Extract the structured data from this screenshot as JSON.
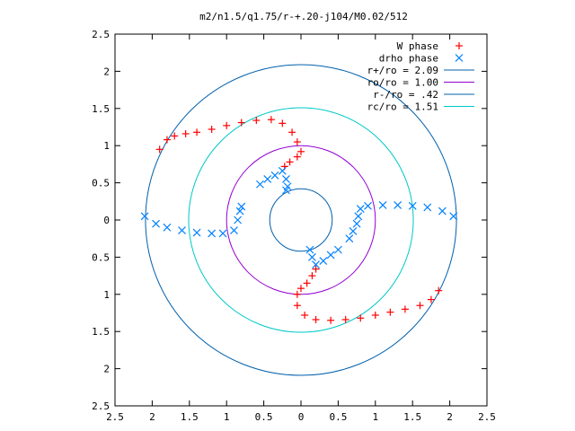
{
  "chart_data": {
    "type": "scatter",
    "title": "m2/n1.5/q1.75/r-+.20-j104/M0.02/512",
    "xlim": [
      -2.5,
      2.5
    ],
    "ylim": [
      -2.5,
      2.5
    ],
    "x_ticks": [
      -2.5,
      -2,
      -1.5,
      -1,
      -0.5,
      0,
      0.5,
      1,
      1.5,
      2,
      2.5
    ],
    "y_ticks": [
      -2.5,
      -2,
      -1.5,
      -1,
      -0.5,
      0,
      0.5,
      1,
      1.5,
      2,
      2.5
    ],
    "x_tick_labels": [
      "2.5",
      "2",
      "1.5",
      "1",
      "0.5",
      "0",
      "0.5",
      "1",
      "1.5",
      "2",
      "2.5"
    ],
    "y_tick_labels": [
      "2.5",
      "2",
      "1.5",
      "1",
      "0.5",
      "0",
      "0.5",
      "1",
      "1.5",
      "2",
      "2.5"
    ],
    "grid": false,
    "legend_position": "top-right",
    "series": [
      {
        "name": "W phase",
        "kind": "points",
        "marker": "+",
        "color": "#ff0000",
        "points": [
          [
            -1.9,
            0.95
          ],
          [
            -1.8,
            1.08
          ],
          [
            -1.7,
            1.13
          ],
          [
            -1.55,
            1.16
          ],
          [
            -1.4,
            1.18
          ],
          [
            -1.2,
            1.22
          ],
          [
            -1.0,
            1.27
          ],
          [
            -0.8,
            1.31
          ],
          [
            -0.6,
            1.34
          ],
          [
            -0.4,
            1.35
          ],
          [
            -0.25,
            1.3
          ],
          [
            -0.12,
            1.18
          ],
          [
            -0.05,
            1.05
          ],
          [
            0.0,
            0.92
          ],
          [
            -0.05,
            0.85
          ],
          [
            -0.15,
            0.78
          ],
          [
            -0.22,
            0.72
          ],
          [
            1.85,
            -0.95
          ],
          [
            1.75,
            -1.07
          ],
          [
            1.6,
            -1.15
          ],
          [
            1.4,
            -1.2
          ],
          [
            1.2,
            -1.24
          ],
          [
            1.0,
            -1.28
          ],
          [
            0.8,
            -1.32
          ],
          [
            0.6,
            -1.34
          ],
          [
            0.4,
            -1.35
          ],
          [
            0.2,
            -1.34
          ],
          [
            0.05,
            -1.28
          ],
          [
            -0.05,
            -1.15
          ],
          [
            -0.05,
            -1.0
          ],
          [
            0.0,
            -0.92
          ],
          [
            0.08,
            -0.85
          ],
          [
            0.15,
            -0.75
          ],
          [
            0.2,
            -0.66
          ]
        ]
      },
      {
        "name": "drho phase",
        "kind": "points",
        "marker": "x",
        "color": "#0080ff",
        "points": [
          [
            -2.1,
            0.05
          ],
          [
            -1.95,
            -0.05
          ],
          [
            -1.8,
            -0.1
          ],
          [
            -1.6,
            -0.14
          ],
          [
            -1.4,
            -0.17
          ],
          [
            -1.2,
            -0.18
          ],
          [
            -1.05,
            -0.18
          ],
          [
            -0.9,
            -0.14
          ],
          [
            -0.85,
            0.0
          ],
          [
            -0.82,
            0.12
          ],
          [
            -0.8,
            0.18
          ],
          [
            -0.55,
            0.48
          ],
          [
            -0.45,
            0.55
          ],
          [
            -0.35,
            0.6
          ],
          [
            -0.25,
            0.66
          ],
          [
            -0.2,
            0.55
          ],
          [
            -0.18,
            0.45
          ],
          [
            -0.2,
            0.4
          ],
          [
            2.05,
            0.05
          ],
          [
            1.9,
            0.12
          ],
          [
            1.7,
            0.17
          ],
          [
            1.5,
            0.19
          ],
          [
            1.3,
            0.2
          ],
          [
            1.1,
            0.2
          ],
          [
            0.9,
            0.19
          ],
          [
            0.8,
            0.15
          ],
          [
            0.77,
            0.05
          ],
          [
            0.75,
            -0.05
          ],
          [
            0.7,
            -0.15
          ],
          [
            0.65,
            -0.25
          ],
          [
            0.5,
            -0.4
          ],
          [
            0.4,
            -0.47
          ],
          [
            0.3,
            -0.55
          ],
          [
            0.2,
            -0.6
          ],
          [
            0.15,
            -0.5
          ],
          [
            0.12,
            -0.4
          ]
        ]
      },
      {
        "name": "r+/ro = 2.09",
        "kind": "circle",
        "radius": 2.09,
        "color": "#0060ad"
      },
      {
        "name": "ro/ro = 1.00",
        "kind": "circle",
        "radius": 1.0,
        "color": "#9400d3"
      },
      {
        "name": "r-/ro = .42",
        "kind": "circle",
        "radius": 0.42,
        "color": "#0060ad"
      },
      {
        "name": "rc/ro = 1.51",
        "kind": "circle",
        "radius": 1.51,
        "color": "#00c8c8"
      }
    ]
  }
}
